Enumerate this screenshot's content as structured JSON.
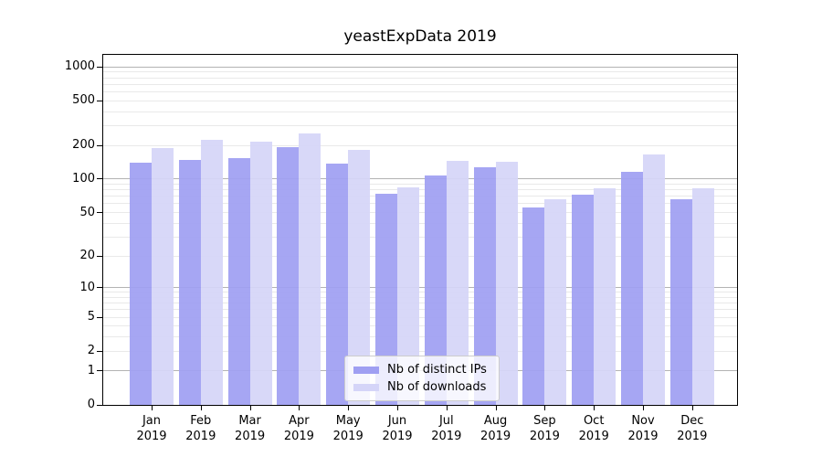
{
  "header": {
    "title": "yeastExpData 2019"
  },
  "chart_data": {
    "type": "bar",
    "title": "yeastExpData 2019",
    "categories": [
      "Jan",
      "Feb",
      "Mar",
      "Apr",
      "May",
      "Jun",
      "Jul",
      "Aug",
      "Sep",
      "Oct",
      "Nov",
      "Dec"
    ],
    "year_label": "2019",
    "series": [
      {
        "name": "Nb of distinct IPs",
        "color": "#9f9ff2",
        "values": [
          140,
          147,
          153,
          193,
          138,
          74,
          108,
          127,
          55,
          72,
          116,
          66
        ]
      },
      {
        "name": "Nb of downloads",
        "color": "#d5d5f8",
        "values": [
          191,
          224,
          215,
          256,
          184,
          85,
          146,
          144,
          66,
          83,
          165,
          82
        ]
      }
    ],
    "xlabel": "",
    "ylabel": "",
    "y_scale": "log10(1+y)",
    "ylim": [
      0,
      1276
    ],
    "y_tick_values": [
      0,
      1,
      2,
      5,
      10,
      20,
      50,
      100,
      200,
      500,
      1000
    ],
    "y_major_grid_values": [
      1,
      10,
      100,
      1000
    ],
    "y_minor_grid_values": [
      2,
      3,
      4,
      5,
      6,
      7,
      8,
      9,
      20,
      30,
      40,
      50,
      60,
      70,
      80,
      90,
      200,
      300,
      400,
      500,
      600,
      700,
      800,
      900
    ],
    "grid": true,
    "legend_position": "lower center"
  },
  "legend": {
    "items": [
      {
        "label": "Nb of distinct IPs"
      },
      {
        "label": "Nb of downloads"
      }
    ]
  },
  "colors": {
    "background": "#ffffff",
    "frame": "#000000",
    "major_grid": "#b3b3b3",
    "minor_grid": "#e9e9e9",
    "text": "#000000",
    "legend_border": "#cccccc"
  }
}
